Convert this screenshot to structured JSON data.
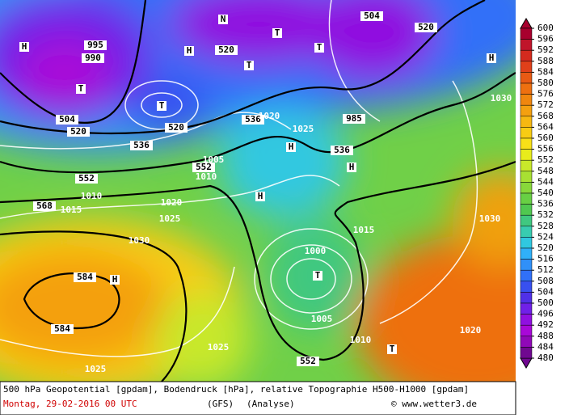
{
  "legend": {
    "values": [
      600,
      596,
      592,
      588,
      584,
      580,
      576,
      572,
      568,
      564,
      560,
      556,
      552,
      548,
      544,
      540,
      536,
      532,
      528,
      524,
      520,
      516,
      512,
      508,
      504,
      500,
      496,
      492,
      488,
      484,
      480
    ],
    "colors": [
      "#a8002e",
      "#c0142a",
      "#d42a1e",
      "#e0401a",
      "#e85a14",
      "#ee7010",
      "#f0860e",
      "#f4a010",
      "#f6b812",
      "#f8cc14",
      "#f8e018",
      "#e8ec1c",
      "#c8e82a",
      "#a8e032",
      "#88d83a",
      "#68d044",
      "#50c850",
      "#40c880",
      "#38ccb0",
      "#30c8e0",
      "#30b0f8",
      "#3090f8",
      "#3070f8",
      "#3850f0",
      "#5030e8",
      "#7020e8",
      "#9010e0",
      "#a808d8",
      "#9008b8",
      "#700890"
    ]
  },
  "map_labels": [
    "552",
    "568",
    "584",
    "584",
    "536",
    "536",
    "520",
    "520",
    "504",
    "504",
    "520",
    "520",
    "536",
    "552",
    "552",
    "T",
    "T",
    "T",
    "T",
    "T",
    "T",
    "T",
    "H",
    "H",
    "H",
    "H",
    "H",
    "H",
    "H",
    "1010",
    "1015",
    "1020",
    "1025",
    "1030",
    "1005",
    "1000",
    "995",
    "990",
    "985",
    "1020",
    "1025",
    "1030",
    "1010",
    "1005",
    "1025",
    "1030",
    "1015",
    "1020",
    "1010",
    "1025",
    "N"
  ],
  "footer": {
    "line1": "500 hPa Geopotential [gpdam], Bodendruck [hPa], relative Topographie H500-H1000 [gpdam]",
    "date": "Montag, 29-02-2016  00 UTC",
    "model": "(GFS)",
    "run": "(Analyse)",
    "copyright": "© www.wetter3.de"
  }
}
